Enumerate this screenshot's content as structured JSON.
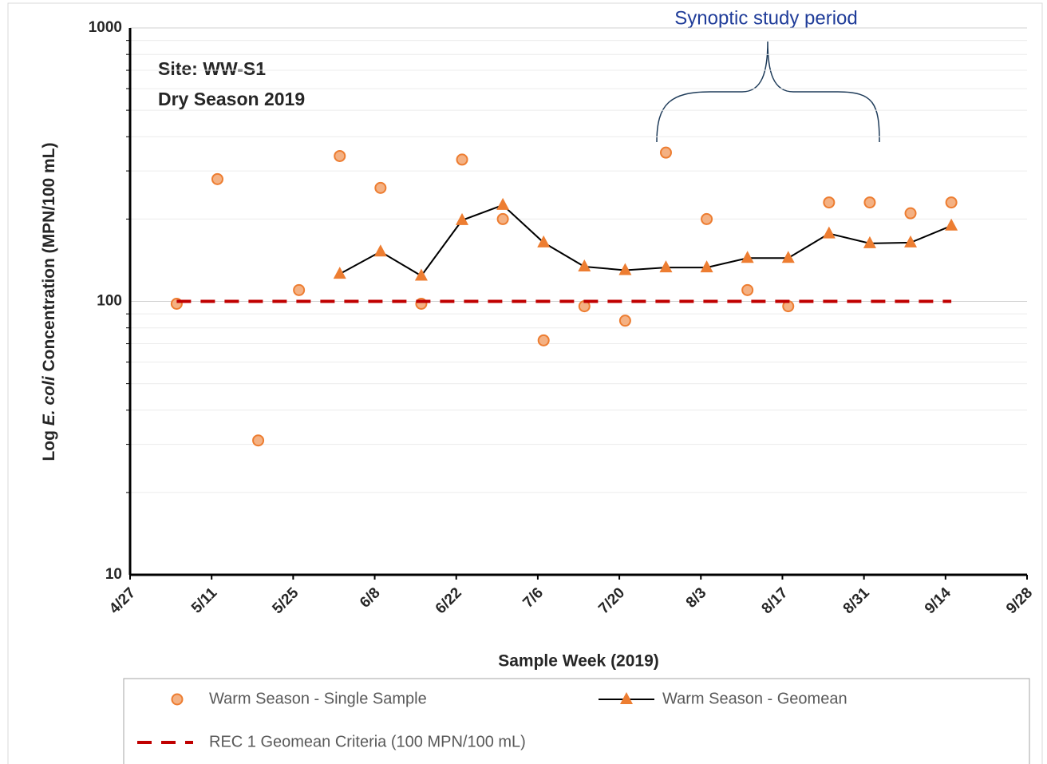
{
  "chart_data": {
    "type": "line",
    "annotations": [
      "Site: WW-S1",
      "Dry Season 2019",
      "Synoptic study period"
    ],
    "xlabel": "Sample Week (2019)",
    "ylabel": [
      "Log ",
      "E. coli",
      " Concentration (MPN/100 mL)"
    ],
    "x": [
      "5/5",
      "5/12",
      "5/19",
      "5/26",
      "6/2",
      "6/9",
      "6/16",
      "6/23",
      "6/30",
      "7/7",
      "7/14",
      "7/21",
      "7/28",
      "8/4",
      "8/11",
      "8/18",
      "8/25",
      "9/1",
      "9/8",
      "9/15"
    ],
    "xlim": [
      "4/27",
      "9/28"
    ],
    "xticks": [
      "4/27",
      "5/11",
      "5/25",
      "6/8",
      "6/22",
      "7/6",
      "7/20",
      "8/3",
      "8/17",
      "8/31",
      "9/14",
      "9/28"
    ],
    "ylim": [
      10,
      1000
    ],
    "yticks": [
      10,
      100,
      1000
    ],
    "yminor": [
      20,
      30,
      40,
      50,
      60,
      70,
      80,
      90,
      200,
      300,
      400,
      500,
      600,
      700,
      800,
      900
    ],
    "log_y": true,
    "grid": true,
    "series": [
      {
        "name": "Warm Season - Single Sample",
        "color": "#ed7d31",
        "fill": "#f4b183",
        "marker": "circle",
        "line": false,
        "values": [
          98,
          280,
          31,
          110,
          340,
          260,
          98,
          330,
          200,
          72,
          96,
          85,
          350,
          200,
          110,
          96,
          230,
          230,
          210,
          230
        ]
      },
      {
        "name": "Warm Season - Geomean",
        "color": "#ed7d31",
        "line_color": "#000000",
        "marker": "triangle",
        "line": true,
        "values": [
          null,
          null,
          null,
          null,
          126,
          152,
          124,
          198,
          225,
          164,
          134,
          130,
          133,
          133,
          144,
          144,
          177,
          163,
          164,
          189
        ]
      },
      {
        "name": "REC 1 Geomean Criteria (100 MPN/100 mL)",
        "color": "#c00000",
        "marker": "none",
        "line": true,
        "dash": true,
        "values": [
          100,
          100,
          100,
          100,
          100,
          100,
          100,
          100,
          100,
          100,
          100,
          100,
          100,
          100,
          100,
          100,
          100,
          100,
          100,
          100
        ]
      }
    ]
  }
}
